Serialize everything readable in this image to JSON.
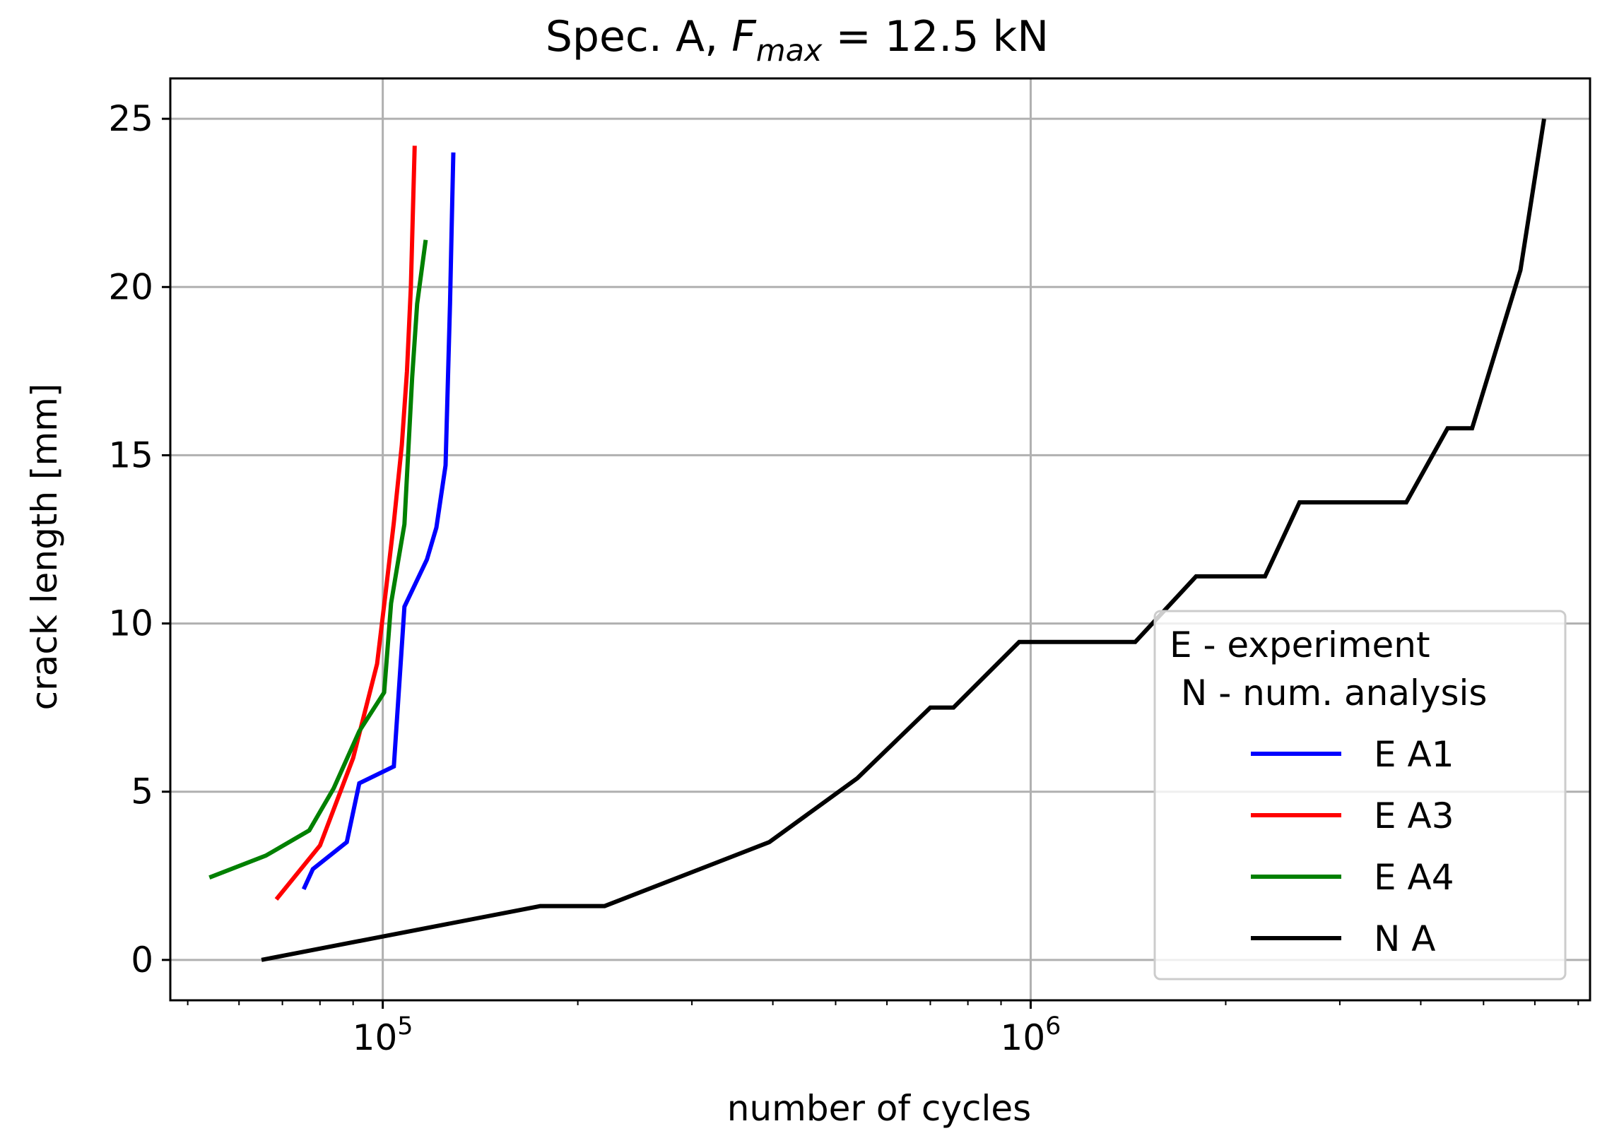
{
  "chart_data": {
    "type": "line",
    "title_main": "Spec. A,  ",
    "title_var": "F",
    "title_sub": "max",
    "title_tail": " = 12.5 kN",
    "xlabel": "number of cycles",
    "ylabel": "crack length [mm]",
    "xscale": "log",
    "xlim": [
      47000,
      7300000
    ],
    "ylim": [
      -1.2,
      26.2
    ],
    "x_major_ticks": [
      {
        "value": 100000,
        "base": "10",
        "exp": "5"
      },
      {
        "value": 1000000,
        "base": "10",
        "exp": "6"
      }
    ],
    "y_ticks": [
      0,
      5,
      10,
      15,
      20,
      25
    ],
    "y_tick_labels": [
      "0",
      "5",
      "10",
      "15",
      "20",
      "25"
    ],
    "grid": true,
    "legend": {
      "position": "lower right",
      "title_line1": "E - experiment",
      "title_line2": " N - num. analysis"
    },
    "series": [
      {
        "name": "E A1",
        "color": "#0000ff",
        "x": [
          75500,
          78000,
          88000,
          92000,
          104000,
          108000,
          117000,
          121000,
          125000,
          127000,
          128000,
          128500
        ],
        "y": [
          2.1,
          2.7,
          3.5,
          5.25,
          5.75,
          10.5,
          11.9,
          12.85,
          14.7,
          19.5,
          22.5,
          24.0
        ]
      },
      {
        "name": "E A3",
        "color": "#ff0000",
        "x": [
          68500,
          80000,
          90000,
          98000,
          101000,
          104000,
          107000,
          109000,
          110500,
          112000
        ],
        "y": [
          1.8,
          3.4,
          6.0,
          8.8,
          10.9,
          13.0,
          15.3,
          17.5,
          20.0,
          24.2
        ]
      },
      {
        "name": "E A4",
        "color": "#008000",
        "x": [
          54000,
          66000,
          77000,
          84000,
          92000,
          100500,
          103000,
          105500,
          108000,
          111000,
          113000,
          116500
        ],
        "y": [
          2.45,
          3.1,
          3.85,
          5.1,
          6.8,
          7.95,
          10.6,
          11.8,
          12.95,
          17.3,
          19.5,
          21.4
        ]
      },
      {
        "name": "N A",
        "color": "#000000",
        "x": [
          65000,
          175000,
          220000,
          395000,
          540000,
          700000,
          760000,
          960000,
          1450000,
          1800000,
          2300000,
          2600000,
          3800000,
          4400000,
          4800000,
          5700000,
          6200000
        ],
        "y": [
          0.0,
          1.6,
          1.6,
          3.5,
          5.4,
          7.5,
          7.5,
          9.45,
          9.45,
          11.4,
          11.4,
          13.6,
          13.6,
          15.8,
          15.8,
          20.5,
          25.0
        ]
      }
    ]
  }
}
